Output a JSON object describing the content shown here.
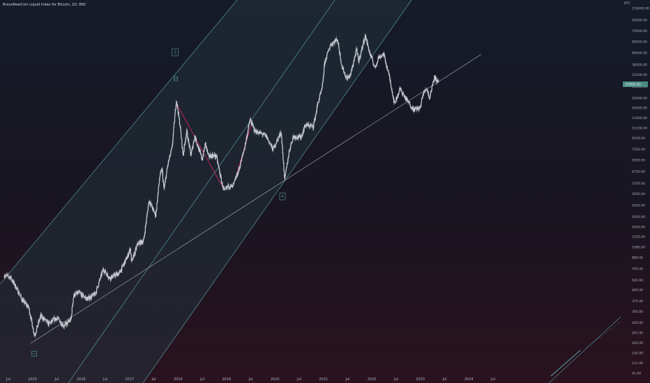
{
  "header": {
    "title": "BraveNewCoin Liquid Index for Bitcoin, 1D, BNC",
    "currency": "BTC"
  },
  "price_axis": {
    "ticks": [
      "116000.00",
      "92000.00",
      "74500.00",
      "60500.00",
      "48500.00",
      "38500.00",
      "31500.00",
      "25000.00",
      "20000.00",
      "16500.00",
      "13500.00",
      "11100.00",
      "9100.00",
      "7350.00",
      "5950.00",
      "4750.00",
      "3750.00",
      "3050.00",
      "2450.00",
      "1950.00",
      "1600.00",
      "1320.00",
      "1080.00",
      "880.00",
      "705.00",
      "565.00",
      "465.00",
      "375.00",
      "305.00",
      "245.00",
      "201.00",
      "165.00",
      "135.00",
      "111.00",
      "91.00"
    ],
    "current_price_label": "27000.00",
    "scale": "log"
  },
  "time_axis": {
    "labels": [
      "Jul",
      "2015",
      "Jul",
      "2016",
      "Jul",
      "2017",
      "Jul",
      "2018",
      "Jul",
      "2019",
      "Jul",
      "2020",
      "Jul",
      "2021",
      "Jul",
      "2022",
      "Jul",
      "2023",
      "Jul",
      "2024",
      "Jul"
    ]
  },
  "wave_labels": [
    {
      "text": "3",
      "boxed": true
    },
    {
      "text": "iii",
      "boxed": true
    },
    {
      "text": "4",
      "boxed": true
    },
    {
      "text": "iv",
      "boxed": true
    }
  ],
  "colors": {
    "background": "#131722",
    "candle": "#c9ccd3",
    "channel": "#4f8a93",
    "channel_fill": "#22313a",
    "wave_line": "#e0245e",
    "support_line": "#c9ccd3",
    "price_tag": "#4a8a80",
    "axis_text": "#b2b5be"
  },
  "chart_data": {
    "type": "line",
    "title": "BraveNewCoin Liquid Index for Bitcoin, 1D, BNC",
    "xlabel": "",
    "ylabel": "",
    "yscale": "log",
    "ylim": [
      91,
      116000
    ],
    "xlim": [
      "2014-06-01",
      "2024-08-15"
    ],
    "grid": false,
    "series": [
      {
        "x": [
          "2014-06-01",
          "2014-07-15",
          "2014-09-01",
          "2014-10-15",
          "2014-12-01",
          "2015-01-14",
          "2015-03-01",
          "2015-05-01",
          "2015-07-01",
          "2015-08-24",
          "2015-10-15",
          "2015-11-04",
          "2015-12-15",
          "2016-02-15",
          "2016-04-15",
          "2016-06-15",
          "2016-08-01",
          "2016-10-15",
          "2016-12-15",
          "2017-01-04",
          "2017-01-15",
          "2017-03-01",
          "2017-04-15",
          "2017-05-25",
          "2017-07-15",
          "2017-08-15",
          "2017-09-01",
          "2017-09-15",
          "2017-10-15",
          "2017-11-15",
          "2017-12-17",
          "2018-01-15",
          "2018-02-06",
          "2018-03-05",
          "2018-04-06",
          "2018-05-05",
          "2018-06-30",
          "2018-07-25",
          "2018-08-15",
          "2018-09-15",
          "2018-10-15",
          "2018-11-25",
          "2018-12-15",
          "2019-01-15",
          "2019-02-15",
          "2019-04-05",
          "2019-05-15",
          "2019-06-26",
          "2019-08-01",
          "2019-09-15",
          "2019-10-26",
          "2019-12-15",
          "2020-02-15",
          "2020-03-13",
          "2020-04-15",
          "2020-05-15",
          "2020-07-15",
          "2020-08-15",
          "2020-10-15",
          "2020-11-20",
          "2020-12-20",
          "2021-01-08",
          "2021-02-21",
          "2021-04-14",
          "2021-05-19",
          "2021-06-22",
          "2021-07-20",
          "2021-09-06",
          "2021-09-21",
          "2021-11-10",
          "2021-12-15",
          "2022-01-24",
          "2022-02-15",
          "2022-03-29",
          "2022-05-15",
          "2022-06-18",
          "2022-07-30",
          "2022-09-15",
          "2022-11-09",
          "2022-12-31",
          "2023-01-15",
          "2023-02-15",
          "2023-03-10",
          "2023-04-14",
          "2023-05-15"
        ],
        "values": [
          620,
          600,
          480,
          380,
          330,
          190,
          280,
          240,
          270,
          230,
          260,
          420,
          440,
          390,
          430,
          700,
          590,
          650,
          900,
          1050,
          800,
          1150,
          1220,
          2700,
          2000,
          4400,
          4900,
          3300,
          5500,
          7500,
          19500,
          11500,
          6500,
          10500,
          6500,
          9500,
          6000,
          8200,
          6400,
          6500,
          6400,
          3800,
          3200,
          3600,
          3500,
          5000,
          7500,
          13100,
          10500,
          10000,
          9500,
          7300,
          10300,
          4000,
          7000,
          9400,
          9300,
          11800,
          11500,
          18500,
          24000,
          40000,
          57000,
          63500,
          37000,
          29500,
          31000,
          52000,
          41000,
          68000,
          48000,
          36000,
          44000,
          47500,
          29000,
          17800,
          24000,
          19500,
          16000,
          16500,
          21000,
          24500,
          20000,
          30500,
          27000
        ]
      }
    ]
  }
}
